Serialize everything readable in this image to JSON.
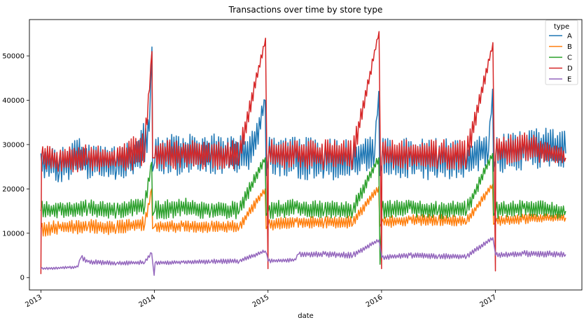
{
  "chart_data": {
    "type": "line",
    "title": "Transactions over time by store type",
    "xlabel": "date",
    "ylabel": "",
    "x_range": [
      "2012-11-25",
      "2017-10-06"
    ],
    "ylim": [
      -2800,
      58200
    ],
    "y_ticks": [
      0,
      10000,
      20000,
      30000,
      40000,
      50000
    ],
    "y_tick_labels": [
      "0",
      "10000",
      "20000",
      "30000",
      "40000",
      "50000"
    ],
    "x_ticks": [
      "2013-01-01",
      "2014-01-01",
      "2015-01-01",
      "2016-01-01",
      "2017-01-01"
    ],
    "x_tick_labels": [
      "2013",
      "2014",
      "2015",
      "2016",
      "2017"
    ],
    "grid": false,
    "legend": {
      "title": "type",
      "placement": "top-right"
    },
    "series": [
      {
        "name": "A",
        "color": "#1f77b4",
        "x": [
          "2013-01-01",
          "2013-01-05",
          "2013-03-01",
          "2013-05-01",
          "2013-07-01",
          "2013-09-01",
          "2013-11-01",
          "2013-12-15",
          "2013-12-24",
          "2013-12-26",
          "2014-01-02",
          "2014-03-01",
          "2014-06-01",
          "2014-09-01",
          "2014-11-15",
          "2014-12-23",
          "2014-12-26",
          "2015-01-02",
          "2015-04-01",
          "2015-07-01",
          "2015-10-01",
          "2015-12-10",
          "2015-12-23",
          "2015-12-26",
          "2016-01-02",
          "2016-04-01",
          "2016-07-01",
          "2016-10-01",
          "2016-12-10",
          "2016-12-23",
          "2016-12-26",
          "2017-01-02",
          "2017-04-01",
          "2017-06-01",
          "2017-08-15"
        ],
        "y": [
          28000,
          24000,
          23500,
          24500,
          24000,
          24000,
          25000,
          33000,
          52000,
          24000,
          26000,
          26000,
          26000,
          25500,
          27500,
          40000,
          23000,
          26500,
          25000,
          25000,
          24500,
          28000,
          42000,
          23000,
          25500,
          25000,
          25000,
          24500,
          28500,
          42500,
          24000,
          26500,
          27000,
          28000,
          28000
        ],
        "lo": [
          27000,
          21500,
          21000,
          22000,
          21500,
          21500,
          22500,
          26000,
          51000,
          23000,
          23000,
          22500,
          22500,
          22500,
          24000,
          38000,
          22000,
          23000,
          21500,
          21500,
          21000,
          25000,
          41000,
          22000,
          22000,
          21500,
          21500,
          21500,
          25000,
          41500,
          23000,
          23000,
          23500,
          24000,
          24500
        ],
        "hi": [
          32000,
          30000,
          29500,
          32000,
          30500,
          30500,
          31500,
          38000,
          52500,
          25000,
          32500,
          33500,
          33500,
          32500,
          34000,
          42000,
          24000,
          32500,
          32500,
          32000,
          32000,
          34000,
          43000,
          24000,
          32000,
          32000,
          32000,
          31500,
          34000,
          43500,
          25000,
          32500,
          34000,
          34500,
          33500
        ]
      },
      {
        "name": "B",
        "color": "#ff7f0e",
        "x": [
          "2013-01-01",
          "2013-03-01",
          "2013-06-01",
          "2013-09-01",
          "2013-12-01",
          "2013-12-23",
          "2013-12-26",
          "2014-01-02",
          "2014-04-01",
          "2014-07-01",
          "2014-10-01",
          "2014-12-23",
          "2014-12-26",
          "2015-01-02",
          "2015-04-01",
          "2015-07-01",
          "2015-10-01",
          "2015-12-23",
          "2015-12-26",
          "2016-01-02",
          "2016-04-01",
          "2016-07-01",
          "2016-10-01",
          "2016-12-23",
          "2016-12-26",
          "2017-01-02",
          "2017-04-01",
          "2017-08-15"
        ],
        "y": [
          11000,
          11000,
          11500,
          11000,
          12000,
          20000,
          11000,
          11500,
          11500,
          11500,
          11500,
          20000,
          11000,
          12000,
          12500,
          12500,
          12000,
          20500,
          11500,
          12500,
          13000,
          13000,
          12500,
          21000,
          12000,
          12500,
          13000,
          13500
        ],
        "lo": [
          9000,
          9500,
          9500,
          9500,
          10500,
          19000,
          10000,
          10000,
          10000,
          10000,
          10000,
          19000,
          10000,
          10500,
          11000,
          11000,
          11000,
          19500,
          10500,
          11000,
          11500,
          11500,
          11500,
          20000,
          11000,
          11500,
          12000,
          12500
        ],
        "hi": [
          13000,
          13000,
          13500,
          13000,
          14000,
          21000,
          12000,
          13000,
          13000,
          13000,
          13000,
          21000,
          12000,
          13500,
          14000,
          14000,
          14000,
          21500,
          12500,
          14000,
          14500,
          14500,
          14000,
          22000,
          13000,
          14000,
          14500,
          14500
        ]
      },
      {
        "name": "C",
        "color": "#2ca02c",
        "x": [
          "2013-01-01",
          "2013-03-01",
          "2013-06-01",
          "2013-09-01",
          "2013-12-01",
          "2013-12-23",
          "2013-12-26",
          "2014-01-02",
          "2014-04-01",
          "2014-07-01",
          "2014-10-01",
          "2014-12-23",
          "2014-12-26",
          "2015-01-02",
          "2015-04-01",
          "2015-07-01",
          "2015-10-01",
          "2015-12-23",
          "2015-12-27",
          "2016-01-02",
          "2016-04-01",
          "2016-07-01",
          "2016-10-01",
          "2016-12-23",
          "2016-12-26",
          "2017-01-02",
          "2017-04-01",
          "2017-08-15"
        ],
        "y": [
          15000,
          15000,
          15500,
          15000,
          16000,
          26000,
          14000,
          15000,
          15000,
          15000,
          15000,
          27000,
          14000,
          15000,
          15500,
          15000,
          15000,
          27000,
          3000,
          15000,
          15500,
          15000,
          15000,
          28000,
          14000,
          15000,
          15500,
          15000
        ],
        "lo": [
          13000,
          13000,
          13500,
          13000,
          14000,
          25000,
          13000,
          13000,
          13000,
          13000,
          13000,
          26000,
          13000,
          13000,
          13500,
          13000,
          13000,
          26000,
          2500,
          13000,
          13500,
          13000,
          13000,
          27000,
          13000,
          13000,
          13500,
          13000
        ],
        "hi": [
          17500,
          17500,
          18000,
          17500,
          18500,
          27000,
          15000,
          17500,
          18500,
          17500,
          17500,
          28000,
          15000,
          17500,
          18000,
          17500,
          17500,
          28000,
          3500,
          17500,
          18000,
          17500,
          17500,
          29000,
          15000,
          17500,
          18000,
          17000
        ]
      },
      {
        "name": "D",
        "color": "#d62728",
        "x": [
          "2013-01-01",
          "2013-01-03",
          "2013-03-01",
          "2013-06-01",
          "2013-09-01",
          "2013-12-01",
          "2013-12-24",
          "2013-12-26",
          "2014-01-02",
          "2014-04-01",
          "2014-07-01",
          "2014-10-01",
          "2014-12-24",
          "2015-01-01",
          "2015-01-02",
          "2015-04-01",
          "2015-07-01",
          "2015-10-01",
          "2015-12-24",
          "2016-01-01",
          "2016-01-02",
          "2016-04-01",
          "2016-07-01",
          "2016-10-01",
          "2016-12-24",
          "2017-01-01",
          "2017-01-02",
          "2017-04-01",
          "2017-08-15"
        ],
        "y": [
          800,
          27000,
          26500,
          26500,
          26500,
          28000,
          51000,
          27000,
          27000,
          27000,
          27000,
          27000,
          54000,
          2000,
          27000,
          27000,
          27000,
          27000,
          55500,
          2000,
          27000,
          27000,
          27000,
          27000,
          53000,
          1500,
          27500,
          28000,
          27000
        ],
        "lo": [
          800,
          24000,
          23500,
          23500,
          23500,
          24000,
          50000,
          25000,
          24000,
          24000,
          24000,
          24000,
          53000,
          2000,
          24000,
          24000,
          24000,
          24000,
          55000,
          2000,
          24000,
          24000,
          24000,
          24000,
          52000,
          1500,
          25000,
          25000,
          25500
        ],
        "hi": [
          800,
          31000,
          29500,
          30500,
          30000,
          34000,
          51500,
          29000,
          31500,
          31500,
          31000,
          31500,
          54500,
          2000,
          31500,
          31500,
          31500,
          31500,
          56000,
          2000,
          31500,
          31500,
          31500,
          31500,
          53500,
          1500,
          32000,
          33500,
          29500
        ]
      },
      {
        "name": "E",
        "color": "#9467bd",
        "x": [
          "2013-01-01",
          "2013-04-01",
          "2013-04-30",
          "2013-05-10",
          "2013-06-01",
          "2013-09-01",
          "2013-12-01",
          "2013-12-23",
          "2013-12-31",
          "2014-01-03",
          "2014-04-01",
          "2014-07-01",
          "2014-10-01",
          "2014-12-23",
          "2015-01-02",
          "2015-03-31",
          "2015-04-10",
          "2015-07-01",
          "2015-10-01",
          "2015-12-24",
          "2016-01-02",
          "2016-04-01",
          "2016-07-01",
          "2016-10-01",
          "2016-12-24",
          "2017-01-02",
          "2017-04-01",
          "2017-08-15"
        ],
        "y": [
          2000,
          2200,
          2400,
          4500,
          3500,
          3200,
          3400,
          5500,
          500,
          3300,
          3400,
          3500,
          3700,
          6000,
          3700,
          4000,
          5300,
          5200,
          5000,
          8500,
          4500,
          5000,
          4800,
          4800,
          9000,
          5000,
          5300,
          5200
        ],
        "lo": [
          1700,
          1900,
          2100,
          3800,
          2900,
          2700,
          2900,
          5000,
          500,
          2800,
          2900,
          3000,
          3100,
          5500,
          3200,
          3500,
          4600,
          4500,
          4300,
          8000,
          3900,
          4300,
          4100,
          4100,
          8500,
          4400,
          4600,
          4500
        ],
        "hi": [
          2300,
          2600,
          2800,
          5200,
          4200,
          3700,
          4000,
          6000,
          500,
          3800,
          4000,
          4200,
          4300,
          6500,
          4200,
          4500,
          6000,
          6000,
          5800,
          9000,
          5100,
          5700,
          5500,
          5500,
          9500,
          5700,
          6200,
          6000
        ]
      }
    ]
  }
}
